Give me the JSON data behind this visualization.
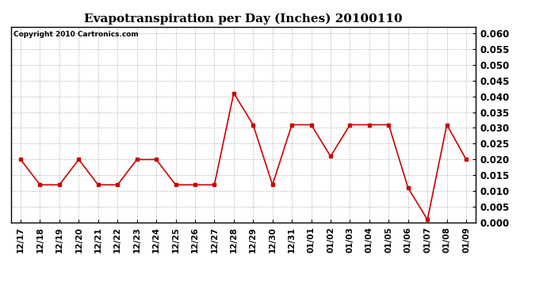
{
  "title": "Evapotranspiration per Day (Inches) 20100110",
  "copyright_text": "Copyright 2010 Cartronics.com",
  "x_labels": [
    "12/17",
    "12/18",
    "12/19",
    "12/20",
    "12/21",
    "12/22",
    "12/23",
    "12/24",
    "12/25",
    "12/26",
    "12/27",
    "12/28",
    "12/29",
    "12/30",
    "12/31",
    "01/01",
    "01/02",
    "01/03",
    "01/04",
    "01/05",
    "01/06",
    "01/07",
    "01/08",
    "01/09"
  ],
  "y_values": [
    0.02,
    0.012,
    0.012,
    0.02,
    0.012,
    0.012,
    0.02,
    0.02,
    0.012,
    0.012,
    0.012,
    0.041,
    0.031,
    0.012,
    0.031,
    0.031,
    0.021,
    0.031,
    0.031,
    0.031,
    0.011,
    0.001,
    0.031,
    0.02
  ],
  "line_color": "#cc0000",
  "marker": "s",
  "marker_size": 3,
  "ylim": [
    0.0,
    0.062
  ],
  "yticks": [
    0.0,
    0.005,
    0.01,
    0.015,
    0.02,
    0.025,
    0.03,
    0.035,
    0.04,
    0.045,
    0.05,
    0.055,
    0.06
  ],
  "bg_color": "#ffffff",
  "plot_bg_color": "#ffffff",
  "grid_color": "#aaaaaa",
  "title_fontsize": 11,
  "copyright_fontsize": 6.5,
  "tick_fontsize": 7.5,
  "ytick_fontsize": 8.5
}
